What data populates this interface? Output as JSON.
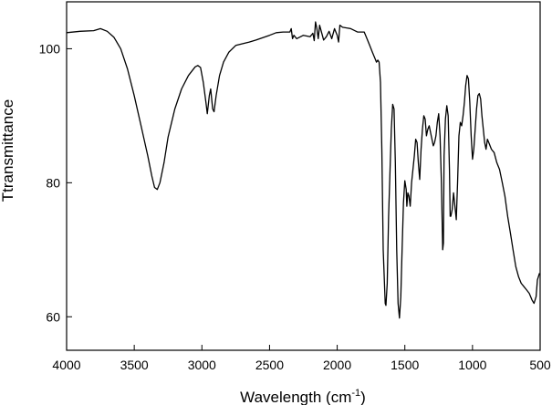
{
  "chart_data": {
    "type": "line",
    "title": "",
    "xlabel": "Wavelength (cm",
    "xlabel_sup": "-1",
    "xlabel_close": ")",
    "ylabel": "Ttransmittance",
    "xlim": [
      4000,
      500
    ],
    "ylim": [
      55,
      107
    ],
    "x_ticks": [
      4000,
      3500,
      3000,
      2500,
      2000,
      1500,
      1000,
      500
    ],
    "y_ticks": [
      60,
      80,
      100
    ],
    "x_tick_labels": [
      "4000",
      "3500",
      "3000",
      "2500",
      "2000",
      "1500",
      "1000",
      "500"
    ],
    "y_tick_labels": [
      "60",
      "80",
      "100"
    ],
    "grid": false,
    "series": [
      {
        "color": "#000000",
        "points": [
          [
            4000,
            102.4
          ],
          [
            3900,
            102.6
          ],
          [
            3800,
            102.7
          ],
          [
            3750,
            103.0
          ],
          [
            3700,
            102.6
          ],
          [
            3650,
            101.7
          ],
          [
            3600,
            100.0
          ],
          [
            3550,
            97.0
          ],
          [
            3500,
            93.0
          ],
          [
            3450,
            88.5
          ],
          [
            3400,
            84.0
          ],
          [
            3370,
            81.0
          ],
          [
            3350,
            79.3
          ],
          [
            3330,
            79.0
          ],
          [
            3310,
            80.0
          ],
          [
            3280,
            83.0
          ],
          [
            3250,
            86.8
          ],
          [
            3200,
            91.0
          ],
          [
            3150,
            94.0
          ],
          [
            3100,
            96.0
          ],
          [
            3050,
            97.3
          ],
          [
            3030,
            97.5
          ],
          [
            3010,
            97.2
          ],
          [
            2990,
            95.0
          ],
          [
            2970,
            92.0
          ],
          [
            2960,
            90.3
          ],
          [
            2945,
            93.0
          ],
          [
            2935,
            94.0
          ],
          [
            2920,
            91.0
          ],
          [
            2910,
            90.6
          ],
          [
            2895,
            93.0
          ],
          [
            2870,
            96.0
          ],
          [
            2840,
            98.0
          ],
          [
            2800,
            99.5
          ],
          [
            2750,
            100.5
          ],
          [
            2650,
            101.0
          ],
          [
            2600,
            101.3
          ],
          [
            2500,
            102.0
          ],
          [
            2450,
            102.4
          ],
          [
            2400,
            102.5
          ],
          [
            2350,
            102.5
          ],
          [
            2340,
            103.0
          ],
          [
            2330,
            101.5
          ],
          [
            2320,
            102.0
          ],
          [
            2300,
            101.5
          ],
          [
            2250,
            102.0
          ],
          [
            2200,
            101.8
          ],
          [
            2180,
            102.3
          ],
          [
            2170,
            101.2
          ],
          [
            2160,
            104.0
          ],
          [
            2150,
            103.0
          ],
          [
            2140,
            101.5
          ],
          [
            2130,
            103.5
          ],
          [
            2110,
            102.0
          ],
          [
            2100,
            101.3
          ],
          [
            2080,
            101.8
          ],
          [
            2060,
            102.6
          ],
          [
            2040,
            101.5
          ],
          [
            2020,
            103.0
          ],
          [
            2000,
            102.0
          ],
          [
            1990,
            101.0
          ],
          [
            1980,
            103.5
          ],
          [
            1960,
            103.2
          ],
          [
            1900,
            103.0
          ],
          [
            1850,
            102.5
          ],
          [
            1800,
            102.5
          ],
          [
            1780,
            101.5
          ],
          [
            1760,
            100.5
          ],
          [
            1740,
            99.5
          ],
          [
            1720,
            98.5
          ],
          [
            1710,
            98.0
          ],
          [
            1700,
            98.3
          ],
          [
            1690,
            98.0
          ],
          [
            1680,
            95.0
          ],
          [
            1670,
            85.0
          ],
          [
            1660,
            70.0
          ],
          [
            1645,
            62.0
          ],
          [
            1640,
            61.7
          ],
          [
            1630,
            65.0
          ],
          [
            1620,
            75.0
          ],
          [
            1600,
            88.0
          ],
          [
            1590,
            91.7
          ],
          [
            1580,
            91.0
          ],
          [
            1570,
            83.0
          ],
          [
            1560,
            70.0
          ],
          [
            1550,
            62.0
          ],
          [
            1540,
            59.8
          ],
          [
            1530,
            63.0
          ],
          [
            1520,
            70.0
          ],
          [
            1510,
            77.0
          ],
          [
            1500,
            80.3
          ],
          [
            1490,
            79.0
          ],
          [
            1485,
            76.5
          ],
          [
            1478,
            78.5
          ],
          [
            1470,
            78.0
          ],
          [
            1460,
            76.5
          ],
          [
            1450,
            80.0
          ],
          [
            1440,
            82.0
          ],
          [
            1430,
            84.0
          ],
          [
            1420,
            86.5
          ],
          [
            1410,
            86.0
          ],
          [
            1400,
            83.0
          ],
          [
            1390,
            80.5
          ],
          [
            1380,
            85.0
          ],
          [
            1370,
            88.0
          ],
          [
            1360,
            90.0
          ],
          [
            1350,
            89.5
          ],
          [
            1340,
            87.0
          ],
          [
            1330,
            88.0
          ],
          [
            1320,
            88.5
          ],
          [
            1310,
            87.5
          ],
          [
            1300,
            86.5
          ],
          [
            1290,
            85.5
          ],
          [
            1280,
            86.0
          ],
          [
            1270,
            87.0
          ],
          [
            1260,
            89.0
          ],
          [
            1250,
            90.3
          ],
          [
            1240,
            87.0
          ],
          [
            1230,
            80.0
          ],
          [
            1220,
            70.0
          ],
          [
            1215,
            71.0
          ],
          [
            1210,
            84.0
          ],
          [
            1200,
            89.5
          ],
          [
            1190,
            91.5
          ],
          [
            1180,
            90.0
          ],
          [
            1170,
            82.0
          ],
          [
            1165,
            75.0
          ],
          [
            1160,
            75.0
          ],
          [
            1150,
            76.0
          ],
          [
            1140,
            78.5
          ],
          [
            1130,
            76.5
          ],
          [
            1120,
            74.5
          ],
          [
            1110,
            80.0
          ],
          [
            1100,
            87.0
          ],
          [
            1090,
            89.0
          ],
          [
            1080,
            88.5
          ],
          [
            1070,
            90.0
          ],
          [
            1060,
            92.0
          ],
          [
            1050,
            94.5
          ],
          [
            1040,
            96.0
          ],
          [
            1030,
            95.5
          ],
          [
            1020,
            92.0
          ],
          [
            1010,
            87.0
          ],
          [
            1000,
            83.5
          ],
          [
            990,
            85.0
          ],
          [
            980,
            88.0
          ],
          [
            970,
            91.0
          ],
          [
            960,
            93.0
          ],
          [
            950,
            93.3
          ],
          [
            940,
            92.5
          ],
          [
            930,
            90.0
          ],
          [
            920,
            88.0
          ],
          [
            910,
            86.0
          ],
          [
            900,
            85.0
          ],
          [
            890,
            86.5
          ],
          [
            880,
            86.0
          ],
          [
            860,
            85.0
          ],
          [
            840,
            84.5
          ],
          [
            820,
            83.0
          ],
          [
            800,
            82.0
          ],
          [
            780,
            80.0
          ],
          [
            760,
            78.0
          ],
          [
            740,
            75.0
          ],
          [
            720,
            72.5
          ],
          [
            700,
            70.0
          ],
          [
            680,
            67.5
          ],
          [
            660,
            66.0
          ],
          [
            640,
            65.0
          ],
          [
            620,
            64.5
          ],
          [
            600,
            64.0
          ],
          [
            580,
            63.5
          ],
          [
            560,
            62.5
          ],
          [
            545,
            62.0
          ],
          [
            530,
            63.0
          ],
          [
            520,
            65.5
          ],
          [
            505,
            66.5
          ]
        ]
      }
    ]
  }
}
